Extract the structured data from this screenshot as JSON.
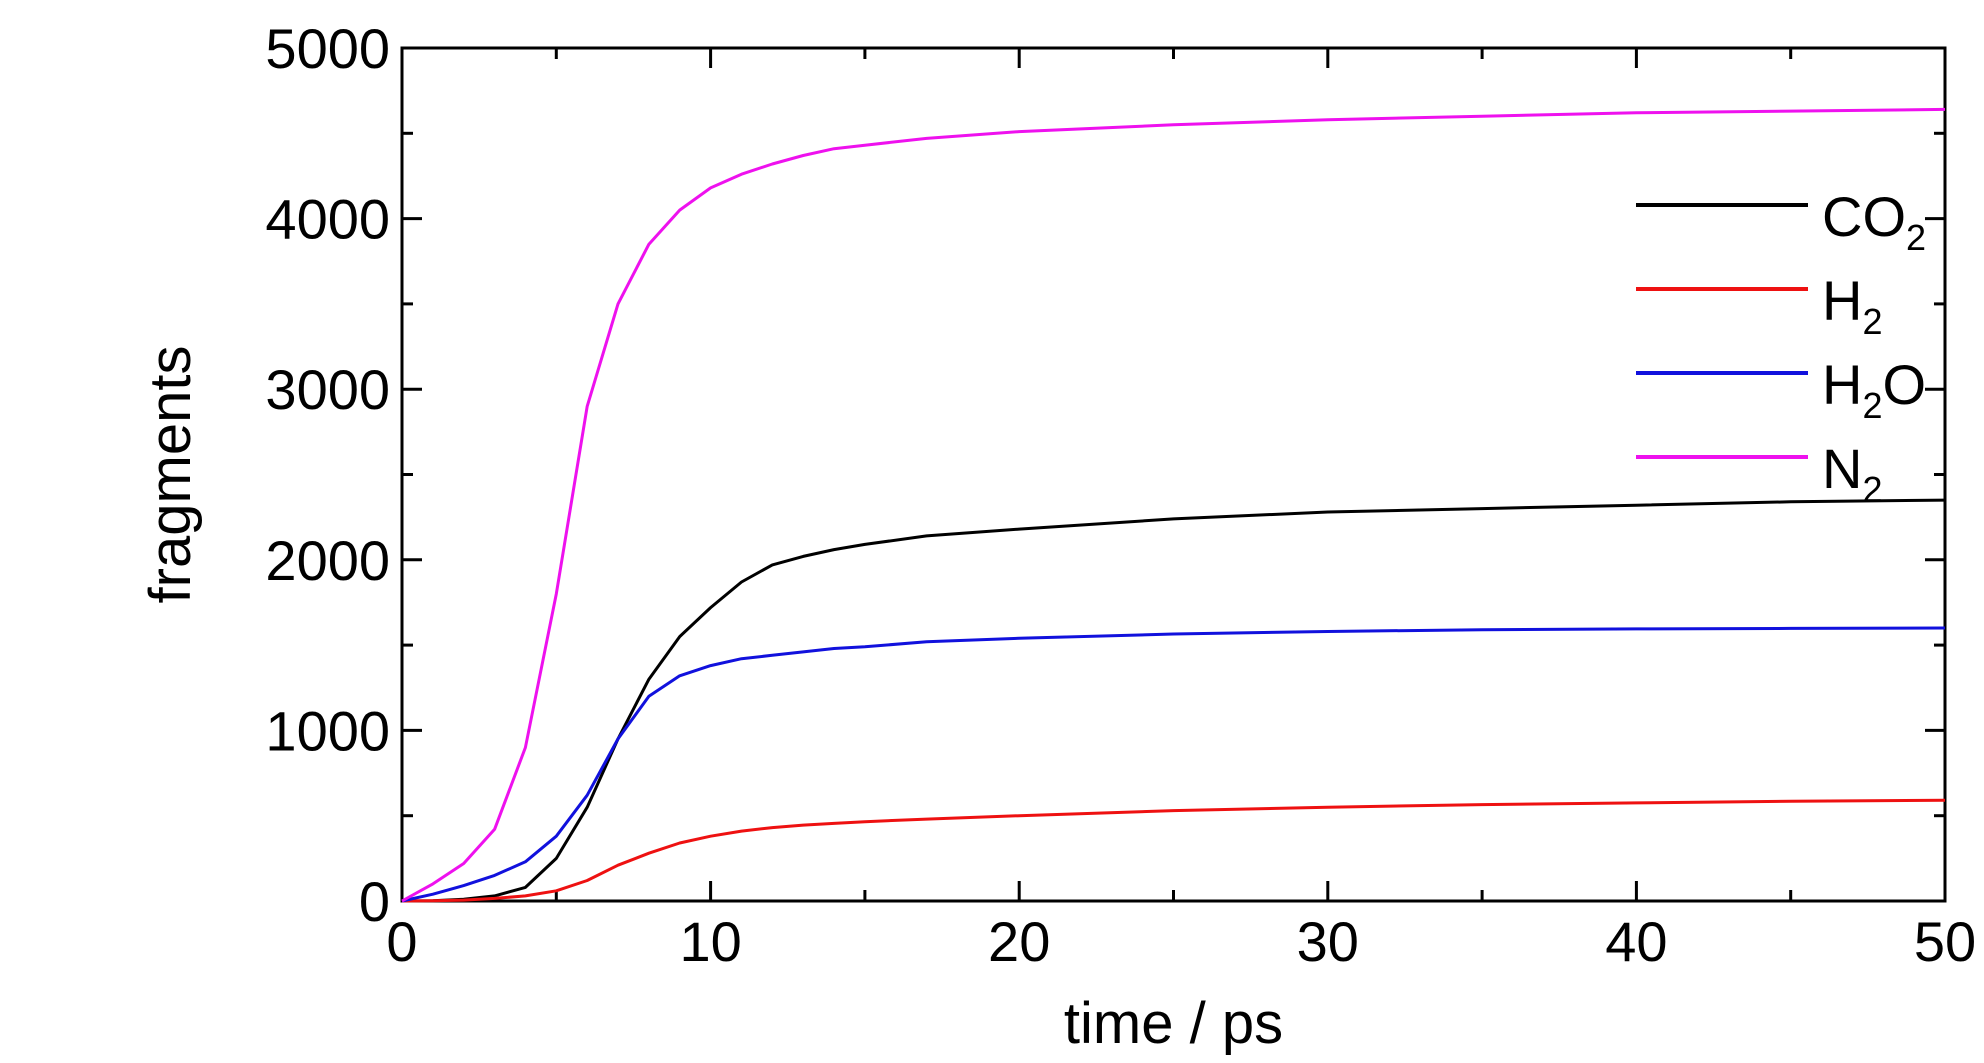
{
  "chart_data": {
    "type": "line",
    "title": "",
    "xlabel": "time / ps",
    "ylabel": "fragments",
    "xlim": [
      0,
      50
    ],
    "ylim": [
      0,
      5000
    ],
    "x_ticks": [
      0,
      10,
      20,
      30,
      40,
      50
    ],
    "y_ticks": [
      0,
      1000,
      2000,
      3000,
      4000,
      5000
    ],
    "x_tick_labels": [
      "0",
      "10",
      "20",
      "30",
      "40",
      "50"
    ],
    "y_tick_labels": [
      "0",
      "1000",
      "2000",
      "3000",
      "4000",
      "5000"
    ],
    "grid": false,
    "legend_position": "right",
    "x": [
      0,
      1,
      2,
      3,
      4,
      5,
      6,
      7,
      8,
      9,
      10,
      11,
      12,
      13,
      14,
      15,
      17,
      20,
      25,
      30,
      35,
      40,
      45,
      50
    ],
    "series": [
      {
        "name": "CO2",
        "label_main": "CO",
        "label_sub": "2",
        "label_tail": "",
        "color": "#000000",
        "values": [
          0,
          2,
          10,
          30,
          80,
          250,
          550,
          950,
          1300,
          1550,
          1720,
          1870,
          1970,
          2020,
          2060,
          2090,
          2140,
          2180,
          2240,
          2280,
          2300,
          2320,
          2340,
          2350
        ]
      },
      {
        "name": "H2",
        "label_main": "H",
        "label_sub": "2",
        "label_tail": "",
        "color": "#ee1111",
        "values": [
          0,
          2,
          5,
          15,
          30,
          60,
          120,
          210,
          280,
          340,
          380,
          410,
          430,
          445,
          455,
          465,
          480,
          500,
          530,
          550,
          565,
          575,
          585,
          590
        ]
      },
      {
        "name": "H2O",
        "label_main": "H",
        "label_sub": "2",
        "label_tail": "O",
        "color": "#1111dd",
        "values": [
          0,
          40,
          90,
          150,
          230,
          380,
          620,
          950,
          1200,
          1320,
          1380,
          1420,
          1440,
          1460,
          1480,
          1490,
          1520,
          1540,
          1565,
          1580,
          1590,
          1595,
          1598,
          1600
        ]
      },
      {
        "name": "N2",
        "label_main": "N",
        "label_sub": "2",
        "label_tail": "",
        "color": "#ee11ee",
        "values": [
          0,
          100,
          220,
          420,
          900,
          1800,
          2900,
          3500,
          3850,
          4050,
          4180,
          4260,
          4320,
          4370,
          4410,
          4430,
          4470,
          4510,
          4550,
          4580,
          4600,
          4620,
          4630,
          4640
        ]
      }
    ]
  }
}
